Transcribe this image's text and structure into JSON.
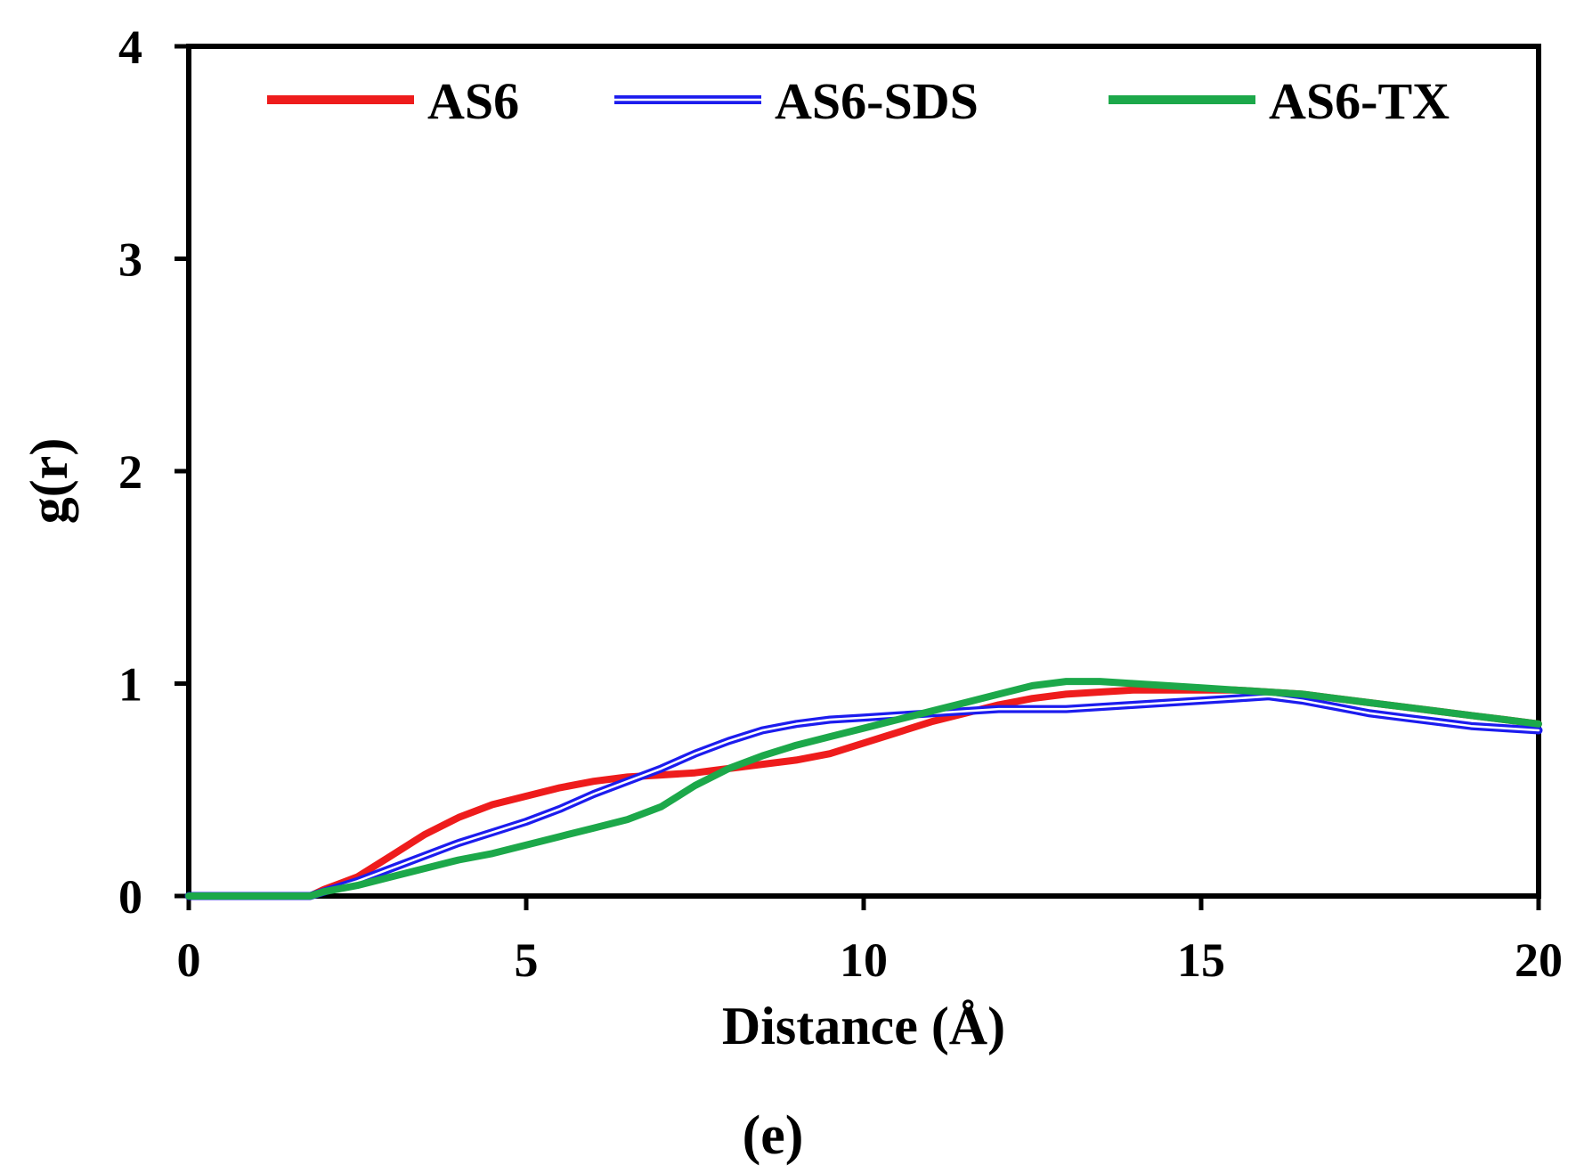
{
  "chart_data": {
    "type": "line",
    "title": "",
    "xlabel": "Distance (Å)",
    "ylabel": "g(r)",
    "panel_label": "(e)",
    "xlim": [
      0,
      20
    ],
    "ylim": [
      0,
      4
    ],
    "x_ticks": [
      0,
      5,
      10,
      15,
      20
    ],
    "y_ticks": [
      0,
      1,
      2,
      3,
      4
    ],
    "grid": false,
    "legend_position": "top",
    "series": [
      {
        "name": "AS6",
        "color": "#ee1c1c",
        "style": "solid",
        "x": [
          0,
          1,
          1.8,
          2,
          2.5,
          3,
          3.5,
          4,
          4.5,
          5,
          5.5,
          6,
          6.5,
          7,
          7.5,
          8,
          8.5,
          9,
          9.5,
          10,
          10.5,
          11,
          11.5,
          12,
          12.5,
          13,
          13.5,
          14,
          14.5,
          15,
          15.5,
          16,
          16.5,
          17,
          17.5,
          18,
          18.5,
          19,
          19.5,
          20
        ],
        "y": [
          0,
          0,
          0,
          0.03,
          0.09,
          0.19,
          0.29,
          0.37,
          0.43,
          0.47,
          0.51,
          0.54,
          0.56,
          0.57,
          0.58,
          0.6,
          0.62,
          0.64,
          0.67,
          0.72,
          0.77,
          0.82,
          0.86,
          0.9,
          0.93,
          0.95,
          0.96,
          0.97,
          0.97,
          0.97,
          0.97,
          0.96,
          0.95,
          0.93,
          0.91,
          0.89,
          0.87,
          0.85,
          0.83,
          0.81
        ]
      },
      {
        "name": "AS6-SDS",
        "color": "#1c1cee",
        "style": "double",
        "x": [
          0,
          1,
          1.8,
          2,
          2.5,
          3,
          3.5,
          4,
          4.5,
          5,
          5.5,
          6,
          6.5,
          7,
          7.5,
          8,
          8.5,
          9,
          9.5,
          10,
          10.5,
          11,
          11.5,
          12,
          12.5,
          13,
          13.5,
          14,
          14.5,
          15,
          15.5,
          16,
          16.5,
          17,
          17.5,
          18,
          18.5,
          19,
          19.5,
          20
        ],
        "y": [
          0,
          0,
          0,
          0.02,
          0.07,
          0.13,
          0.19,
          0.25,
          0.3,
          0.35,
          0.41,
          0.48,
          0.54,
          0.6,
          0.67,
          0.73,
          0.78,
          0.81,
          0.83,
          0.84,
          0.85,
          0.86,
          0.87,
          0.88,
          0.88,
          0.88,
          0.89,
          0.9,
          0.91,
          0.92,
          0.93,
          0.94,
          0.92,
          0.89,
          0.86,
          0.84,
          0.82,
          0.8,
          0.79,
          0.78
        ]
      },
      {
        "name": "AS6-TX",
        "color": "#1ca84a",
        "style": "solid",
        "x": [
          0,
          1,
          1.8,
          2,
          2.5,
          3,
          3.5,
          4,
          4.5,
          5,
          5.5,
          6,
          6.5,
          7,
          7.5,
          8,
          8.5,
          9,
          9.5,
          10,
          10.5,
          11,
          11.5,
          12,
          12.5,
          13,
          13.5,
          14,
          14.5,
          15,
          15.5,
          16,
          16.5,
          17,
          17.5,
          18,
          18.5,
          19,
          19.5,
          20
        ],
        "y": [
          0,
          0,
          0,
          0.02,
          0.05,
          0.09,
          0.13,
          0.17,
          0.2,
          0.24,
          0.28,
          0.32,
          0.36,
          0.42,
          0.52,
          0.6,
          0.66,
          0.71,
          0.75,
          0.79,
          0.83,
          0.87,
          0.91,
          0.95,
          0.99,
          1.01,
          1.01,
          1.0,
          0.99,
          0.98,
          0.97,
          0.96,
          0.95,
          0.93,
          0.91,
          0.89,
          0.87,
          0.85,
          0.83,
          0.81
        ]
      }
    ]
  }
}
